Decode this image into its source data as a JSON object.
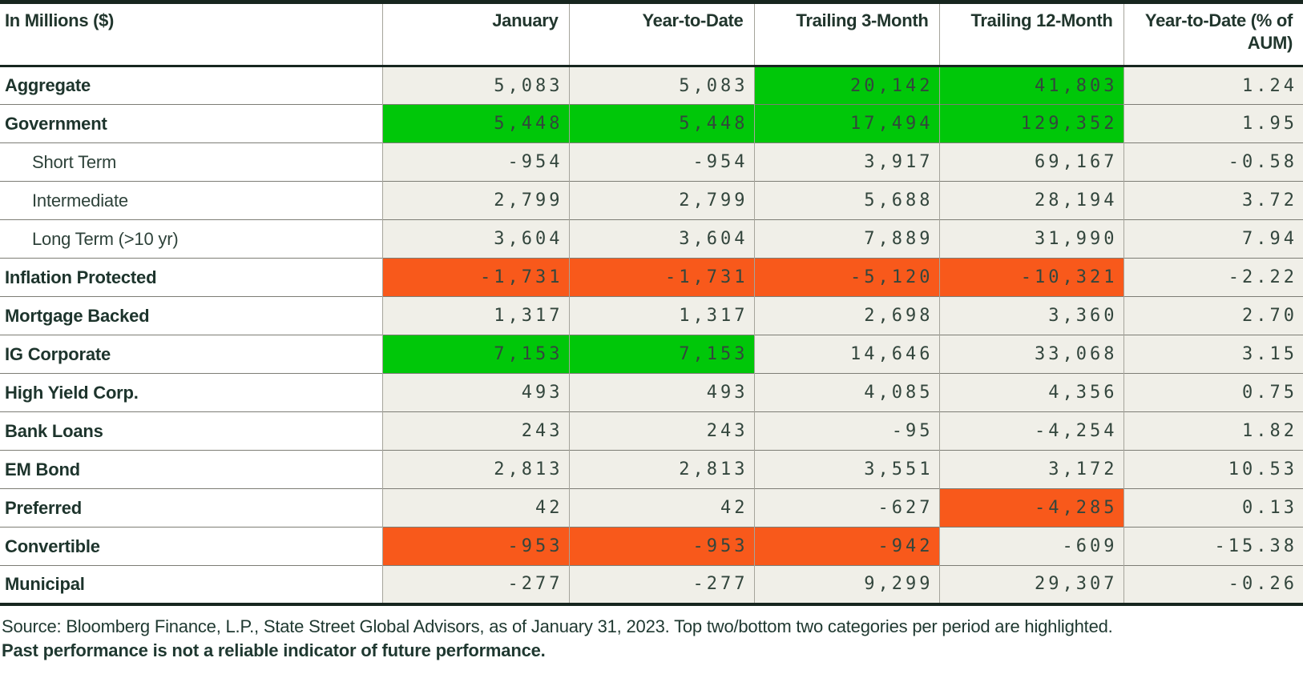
{
  "table": {
    "columns": [
      "In Millions ($)",
      "January",
      "Year-to-Date",
      "Trailing 3-Month",
      "Trailing 12-Month",
      "Year-to-Date (% of AUM)"
    ],
    "column_keys": [
      "january",
      "year-to-date",
      "trailing-3-month",
      "trailing-12-month",
      "ytd-pct-of-aum"
    ],
    "rows": [
      {
        "label": "Aggregate",
        "indent": false,
        "values": [
          "5,083",
          "5,083",
          "20,142",
          "41,803",
          "1.24"
        ],
        "highlights": [
          null,
          null,
          "green",
          "green",
          null
        ]
      },
      {
        "label": "Government",
        "indent": false,
        "values": [
          "5,448",
          "5,448",
          "17,494",
          "129,352",
          "1.95"
        ],
        "highlights": [
          "green",
          "green",
          "green",
          "green",
          null
        ]
      },
      {
        "label": "Short Term",
        "indent": true,
        "values": [
          "-954",
          "-954",
          "3,917",
          "69,167",
          "-0.58"
        ],
        "highlights": [
          null,
          null,
          null,
          null,
          null
        ]
      },
      {
        "label": "Intermediate",
        "indent": true,
        "values": [
          "2,799",
          "2,799",
          "5,688",
          "28,194",
          "3.72"
        ],
        "highlights": [
          null,
          null,
          null,
          null,
          null
        ]
      },
      {
        "label": "Long Term (>10 yr)",
        "indent": true,
        "values": [
          "3,604",
          "3,604",
          "7,889",
          "31,990",
          "7.94"
        ],
        "highlights": [
          null,
          null,
          null,
          null,
          null
        ]
      },
      {
        "label": "Inflation Protected",
        "indent": false,
        "values": [
          "-1,731",
          "-1,731",
          "-5,120",
          "-10,321",
          "-2.22"
        ],
        "highlights": [
          "orange",
          "orange",
          "orange",
          "orange",
          null
        ]
      },
      {
        "label": "Mortgage Backed",
        "indent": false,
        "values": [
          "1,317",
          "1,317",
          "2,698",
          "3,360",
          "2.70"
        ],
        "highlights": [
          null,
          null,
          null,
          null,
          null
        ]
      },
      {
        "label": "IG Corporate",
        "indent": false,
        "values": [
          "7,153",
          "7,153",
          "14,646",
          "33,068",
          "3.15"
        ],
        "highlights": [
          "green",
          "green",
          null,
          null,
          null
        ]
      },
      {
        "label": "High Yield Corp.",
        "indent": false,
        "values": [
          "493",
          "493",
          "4,085",
          "4,356",
          "0.75"
        ],
        "highlights": [
          null,
          null,
          null,
          null,
          null
        ]
      },
      {
        "label": "Bank Loans",
        "indent": false,
        "values": [
          "243",
          "243",
          "-95",
          "-4,254",
          "1.82"
        ],
        "highlights": [
          null,
          null,
          null,
          null,
          null
        ]
      },
      {
        "label": "EM Bond",
        "indent": false,
        "values": [
          "2,813",
          "2,813",
          "3,551",
          "3,172",
          "10.53"
        ],
        "highlights": [
          null,
          null,
          null,
          null,
          null
        ]
      },
      {
        "label": "Preferred",
        "indent": false,
        "values": [
          "42",
          "42",
          "-627",
          "-4,285",
          "0.13"
        ],
        "highlights": [
          null,
          null,
          null,
          "orange",
          null
        ]
      },
      {
        "label": "Convertible",
        "indent": false,
        "values": [
          "-953",
          "-953",
          "-942",
          "-609",
          "-15.38"
        ],
        "highlights": [
          "orange",
          "orange",
          "orange",
          null,
          null
        ]
      },
      {
        "label": "Municipal",
        "indent": false,
        "values": [
          "-277",
          "-277",
          "9,299",
          "29,307",
          "-0.26"
        ],
        "highlights": [
          null,
          null,
          null,
          null,
          null
        ]
      }
    ]
  },
  "footer": {
    "source_note": "Source: Bloomberg Finance, L.P., State Street Global Advisors, as of January 31, 2023. Top two/bottom two categories per period are highlighted.",
    "disclaimer": "Past performance is not a reliable indicator of future performance."
  },
  "colors": {
    "highlight_positive": "#00c709",
    "highlight_negative": "#f8591b",
    "cell_background": "#f0efe8",
    "text_dark_green": "#1d342c"
  }
}
